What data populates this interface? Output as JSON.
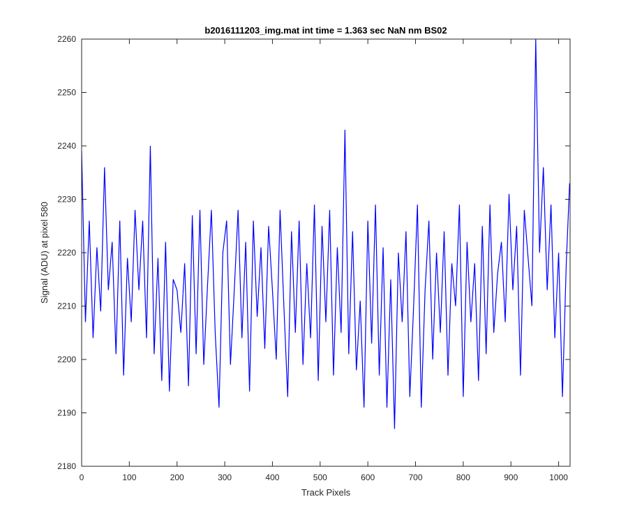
{
  "chart_data": {
    "type": "line",
    "title": "b2016111203_img.mat int time = 1.363 sec  NaN nm BS02",
    "xlabel": "Track Pixels",
    "ylabel": "Signal (ADU) at pixel 580",
    "xlim": [
      0,
      1024
    ],
    "ylim": [
      2180,
      2260
    ],
    "xticks": [
      0,
      100,
      200,
      300,
      400,
      500,
      600,
      700,
      800,
      900,
      1000
    ],
    "yticks": [
      2180,
      2190,
      2200,
      2210,
      2220,
      2230,
      2240,
      2250,
      2260
    ],
    "grid": false,
    "legend": "none",
    "series": [
      {
        "color": "#0000ff",
        "x": [
          0,
          8,
          16,
          24,
          32,
          40,
          48,
          56,
          64,
          72,
          80,
          88,
          96,
          104,
          112,
          120,
          128,
          136,
          144,
          152,
          160,
          168,
          176,
          184,
          192,
          200,
          208,
          216,
          224,
          232,
          240,
          248,
          256,
          264,
          272,
          280,
          288,
          296,
          304,
          312,
          320,
          328,
          336,
          344,
          352,
          360,
          368,
          376,
          384,
          392,
          400,
          408,
          416,
          424,
          432,
          440,
          448,
          456,
          464,
          472,
          480,
          488,
          496,
          504,
          512,
          520,
          528,
          536,
          544,
          552,
          560,
          568,
          576,
          584,
          592,
          600,
          608,
          616,
          624,
          632,
          640,
          648,
          656,
          664,
          672,
          680,
          688,
          696,
          704,
          712,
          720,
          728,
          736,
          744,
          752,
          760,
          768,
          776,
          784,
          792,
          800,
          808,
          816,
          824,
          832,
          840,
          848,
          856,
          864,
          872,
          880,
          888,
          896,
          904,
          912,
          920,
          928,
          936,
          944,
          952,
          960,
          968,
          976,
          984,
          992,
          1000,
          1008,
          1016,
          1023
        ],
        "y": [
          2239,
          2207,
          2226,
          2204,
          2221,
          2209,
          2236,
          2213,
          2222,
          2201,
          2226,
          2197,
          2219,
          2207,
          2228,
          2213,
          2226,
          2204,
          2240,
          2201,
          2219,
          2196,
          2222,
          2194,
          2215,
          2213,
          2205,
          2218,
          2195,
          2227,
          2201,
          2228,
          2199,
          2214,
          2228,
          2205,
          2191,
          2220,
          2226,
          2199,
          2213,
          2228,
          2204,
          2222,
          2194,
          2226,
          2208,
          2221,
          2202,
          2225,
          2213,
          2200,
          2228,
          2210,
          2193,
          2224,
          2205,
          2226,
          2199,
          2218,
          2204,
          2229,
          2196,
          2225,
          2207,
          2228,
          2197,
          2221,
          2205,
          2243,
          2201,
          2224,
          2198,
          2211,
          2191,
          2226,
          2203,
          2229,
          2197,
          2221,
          2191,
          2215,
          2187,
          2220,
          2207,
          2224,
          2193,
          2210,
          2229,
          2191,
          2213,
          2226,
          2200,
          2220,
          2205,
          2224,
          2197,
          2218,
          2210,
          2229,
          2193,
          2222,
          2207,
          2218,
          2196,
          2225,
          2201,
          2229,
          2205,
          2216,
          2222,
          2207,
          2231,
          2213,
          2225,
          2197,
          2228,
          2219,
          2210,
          2260,
          2220,
          2236,
          2213,
          2229,
          2204,
          2220,
          2193,
          2218,
          2233
        ]
      }
    ]
  }
}
